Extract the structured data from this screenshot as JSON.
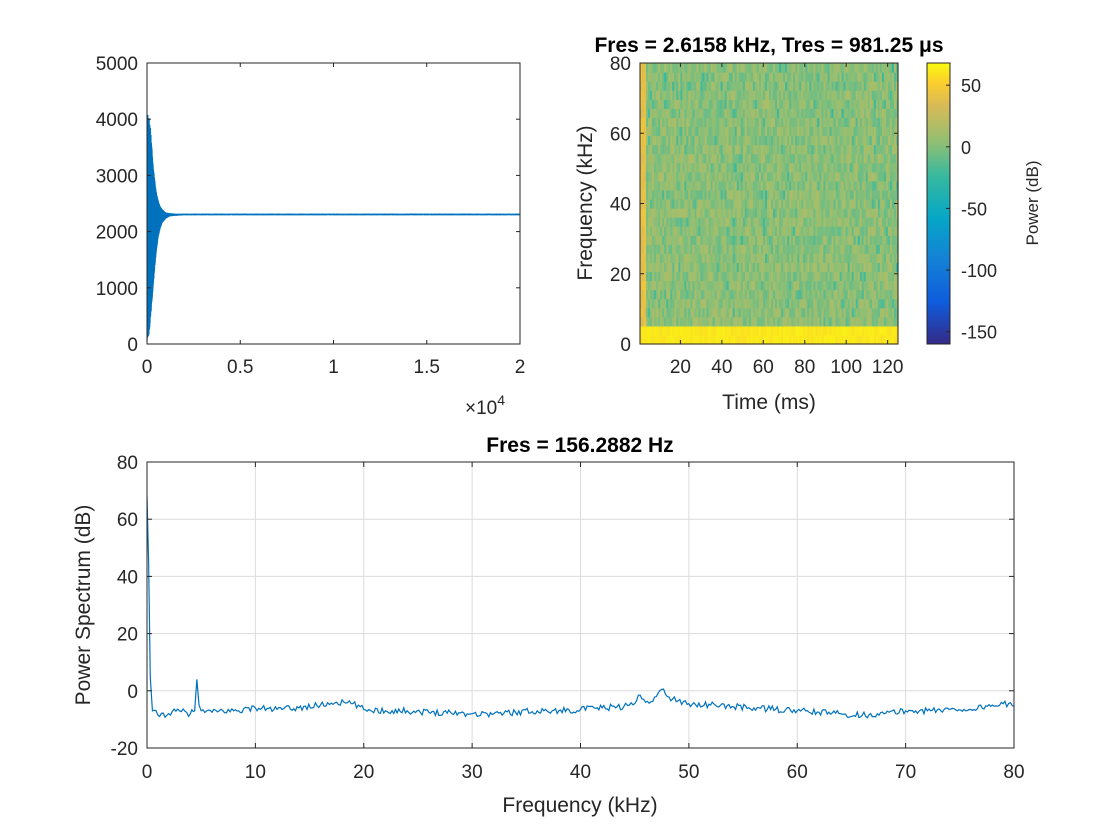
{
  "chart_data": [
    {
      "type": "line",
      "title": "",
      "xlabel": "",
      "ylabel": "",
      "xlim": [
        0,
        20000
      ],
      "ylim": [
        0,
        5000
      ],
      "x_ticks": [
        0,
        0.5,
        1,
        1.5,
        2
      ],
      "y_ticks": [
        0,
        1000,
        2000,
        3000,
        4000,
        5000
      ],
      "x_exponent": "×10",
      "x_exponent_power": "4",
      "grid": false,
      "series": [
        {
          "color": "#0072BD",
          "description": "transient oscillation decaying to steady value",
          "x": [
            0,
            50,
            100,
            150,
            200,
            300,
            400,
            500,
            600,
            700,
            800,
            1000,
            1200,
            1500,
            2000,
            3000,
            5000,
            7500,
            10000,
            12500,
            15000,
            17500,
            20000
          ],
          "y_upper": [
            4100,
            4080,
            4050,
            3950,
            3800,
            3300,
            2950,
            2700,
            2550,
            2450,
            2400,
            2340,
            2330,
            2320,
            2320,
            2320,
            2320,
            2320,
            2320,
            2320,
            2320,
            2320,
            2320
          ],
          "y_lower": [
            50,
            100,
            150,
            300,
            500,
            900,
            1300,
            1650,
            1900,
            2050,
            2150,
            2230,
            2270,
            2280,
            2290,
            2290,
            2290,
            2290,
            2290,
            2290,
            2290,
            2290,
            2290
          ]
        }
      ]
    },
    {
      "type": "heatmap",
      "title": "Fres = 2.6158 kHz, Tres = 981.25 μs",
      "xlabel": "Time (ms)",
      "ylabel": "Frequency (kHz)",
      "xlim": [
        0.5,
        125
      ],
      "ylim": [
        0,
        80
      ],
      "x_ticks": [
        20,
        40,
        60,
        80,
        100,
        120
      ],
      "y_ticks": [
        0,
        20,
        40,
        60,
        80
      ],
      "colorbar": {
        "label": "Power (dB)",
        "ticks": [
          50,
          0,
          -50,
          -100,
          -150
        ],
        "clim": [
          -160,
          68
        ],
        "colormap": "parula"
      },
      "description": "Broadband noise around 0 to +20 dB, strong band (≈60 dB) at 0–5 kHz, brighter region near t=0"
    },
    {
      "type": "line",
      "title": "Fres = 156.2882 Hz",
      "xlabel": "Frequency (kHz)",
      "ylabel": "Power Spectrum (dB)",
      "xlim": [
        0,
        80
      ],
      "ylim": [
        -20,
        80
      ],
      "x_ticks": [
        0,
        10,
        20,
        30,
        40,
        50,
        60,
        70,
        80
      ],
      "y_ticks": [
        -20,
        0,
        20,
        40,
        60,
        80
      ],
      "grid": true,
      "series": [
        {
          "color": "#0072BD",
          "x": [
            0,
            0.15,
            0.3,
            0.5,
            1,
            2,
            3,
            4,
            4.4,
            4.6,
            4.8,
            5,
            6,
            7,
            8,
            10,
            12,
            14,
            16,
            17.5,
            19,
            20,
            22,
            24,
            26,
            28,
            30,
            32,
            34,
            36,
            38,
            40,
            42,
            44,
            45,
            45.5,
            46,
            47,
            47.5,
            48,
            49,
            50,
            52,
            54,
            56,
            58,
            60,
            62,
            64,
            66,
            68,
            70,
            72,
            74,
            76,
            78,
            79,
            80
          ],
          "y": [
            68,
            45,
            5,
            -7,
            -8.5,
            -8,
            -7,
            -8,
            -7,
            4,
            -5,
            -7,
            -7.5,
            -7,
            -7,
            -6,
            -6.5,
            -6,
            -5,
            -4,
            -4.5,
            -6.5,
            -7,
            -7,
            -7.5,
            -7.5,
            -8,
            -8,
            -7.5,
            -7,
            -7,
            -6.5,
            -6,
            -5.5,
            -4.5,
            -1.5,
            -4,
            -2,
            0.5,
            -2,
            -3.5,
            -4.5,
            -5,
            -5.5,
            -6,
            -6.5,
            -7,
            -7.5,
            -8,
            -8.5,
            -8,
            -7,
            -7,
            -6.5,
            -6.5,
            -5,
            -4.5,
            -5.5
          ]
        }
      ]
    }
  ]
}
